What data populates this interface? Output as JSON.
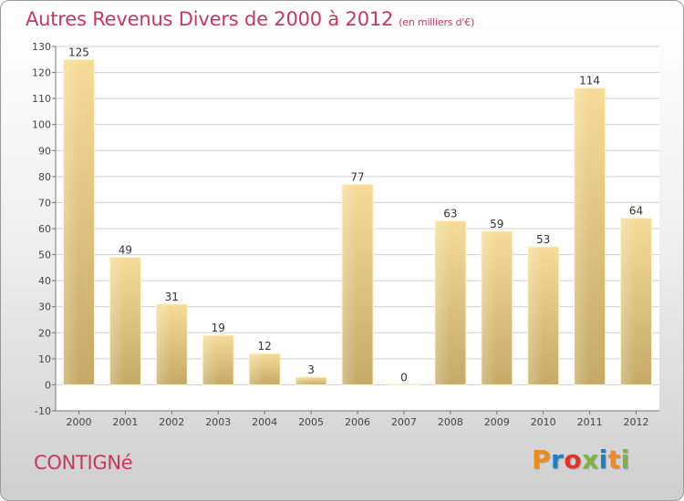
{
  "header": {
    "title": "Autres Revenus Divers de 2000 à 2012",
    "subtitle": "(en milliers d'€)"
  },
  "footer": {
    "town": "CONTIGNé",
    "brand": "Proxiti",
    "brand_colors": [
      "#f08a1c",
      "#1e7fc4",
      "#e4322b",
      "#7cb342",
      "#1e7fc4",
      "#f08a1c",
      "#7cb342"
    ]
  },
  "colors": {
    "accent": "#c8375f",
    "bar_light": "#f6dc98",
    "bar_dark": "#c4aa66",
    "grid": "#cfcfcf"
  },
  "chart_data": {
    "type": "bar",
    "title": "Autres Revenus Divers de 2000 à 2012",
    "subtitle": "(en milliers d'€)",
    "categories": [
      "2000",
      "2001",
      "2002",
      "2003",
      "2004",
      "2005",
      "2006",
      "2007",
      "2008",
      "2009",
      "2010",
      "2011",
      "2012"
    ],
    "values": [
      125,
      49,
      31,
      19,
      12,
      3,
      77,
      0,
      63,
      59,
      53,
      114,
      64
    ],
    "data_labels": [
      "125",
      "49",
      "31",
      "19",
      "12",
      "3",
      "77",
      "0",
      "63",
      "59",
      "53",
      "114",
      "64"
    ],
    "ylim": [
      -10,
      130
    ],
    "yticks": [
      -10,
      0,
      10,
      20,
      30,
      40,
      50,
      60,
      70,
      80,
      90,
      100,
      110,
      120,
      130
    ],
    "grid": true,
    "xlabel": "",
    "ylabel": ""
  }
}
